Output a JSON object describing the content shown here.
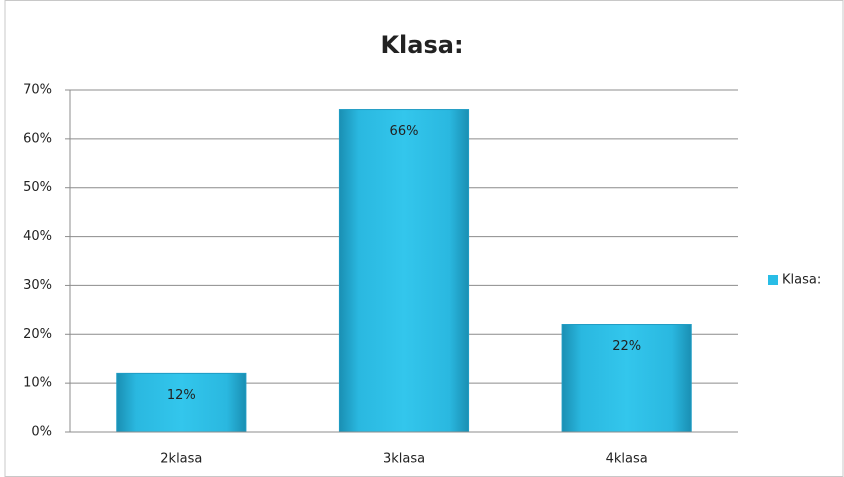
{
  "chart_data": {
    "type": "bar",
    "title": "Klasa:",
    "categories": [
      "2klasa",
      "3klasa",
      "4klasa"
    ],
    "series": [
      {
        "name": "Klasa:",
        "color": "#29bde6",
        "values": [
          12,
          66,
          22
        ],
        "value_labels": [
          "12%",
          "66%",
          "22%"
        ]
      }
    ],
    "ylim": [
      0,
      70
    ],
    "yticks": [
      {
        "value": 0,
        "label": "0%"
      },
      {
        "value": 10,
        "label": "10%"
      },
      {
        "value": 20,
        "label": "20%"
      },
      {
        "value": 30,
        "label": "30%"
      },
      {
        "value": 40,
        "label": "40%"
      },
      {
        "value": 50,
        "label": "50%"
      },
      {
        "value": 60,
        "label": "60%"
      },
      {
        "value": 70,
        "label": "70%"
      }
    ],
    "grid": true,
    "legend": "right"
  }
}
